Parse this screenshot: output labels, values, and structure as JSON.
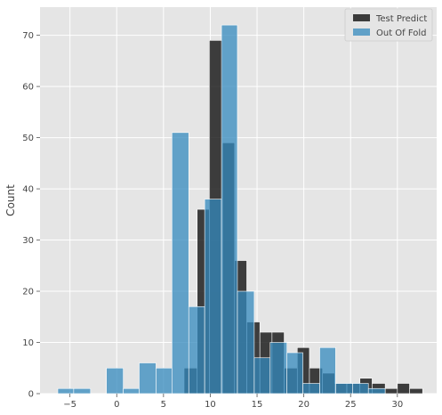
{
  "chart_data": {
    "type": "histogram",
    "title": "",
    "xlabel": "",
    "ylabel": "Count",
    "xlim": [
      -8.2,
      34.2
    ],
    "ylim": [
      0,
      75.5
    ],
    "x_ticks": [
      -5,
      0,
      5,
      10,
      15,
      20,
      25,
      30
    ],
    "x_tick_labels": [
      "−5",
      "0",
      "5",
      "10",
      "15",
      "20",
      "25",
      "30"
    ],
    "y_ticks": [
      0,
      10,
      20,
      30,
      40,
      50,
      60,
      70
    ],
    "y_tick_labels": [
      "0",
      "10",
      "20",
      "30",
      "40",
      "50",
      "60",
      "70"
    ],
    "grid": true,
    "legend_position": "top-right",
    "series": [
      {
        "name": "Test Predict",
        "color": "#111111",
        "opacity": 0.8,
        "bins": [
          {
            "x0": 7.2,
            "x1": 8.6,
            "count": 5
          },
          {
            "x0": 8.6,
            "x1": 9.9,
            "count": 36
          },
          {
            "x0": 9.9,
            "x1": 11.3,
            "count": 69
          },
          {
            "x0": 11.3,
            "x1": 12.6,
            "count": 49
          },
          {
            "x0": 12.6,
            "x1": 13.9,
            "count": 26
          },
          {
            "x0": 13.9,
            "x1": 15.3,
            "count": 14
          },
          {
            "x0": 15.3,
            "x1": 16.6,
            "count": 12
          },
          {
            "x0": 16.6,
            "x1": 17.9,
            "count": 12
          },
          {
            "x0": 17.9,
            "x1": 19.3,
            "count": 5
          },
          {
            "x0": 19.3,
            "x1": 20.6,
            "count": 9
          },
          {
            "x0": 20.6,
            "x1": 22.0,
            "count": 5
          },
          {
            "x0": 22.0,
            "x1": 23.3,
            "count": 4
          },
          {
            "x0": 23.3,
            "x1": 24.6,
            "count": 2
          },
          {
            "x0": 24.6,
            "x1": 26.0,
            "count": 2
          },
          {
            "x0": 26.0,
            "x1": 27.3,
            "count": 3
          },
          {
            "x0": 27.3,
            "x1": 28.7,
            "count": 2
          },
          {
            "x0": 28.7,
            "x1": 30.0,
            "count": 1
          },
          {
            "x0": 30.0,
            "x1": 31.3,
            "count": 2
          },
          {
            "x0": 31.3,
            "x1": 32.7,
            "count": 1
          }
        ]
      },
      {
        "name": "Out Of Fold",
        "color": "#348ABD",
        "opacity": 0.75,
        "bins": [
          {
            "x0": -6.3,
            "x1": -4.6,
            "count": 1
          },
          {
            "x0": -4.6,
            "x1": -2.8,
            "count": 1
          },
          {
            "x0": -1.1,
            "x1": 0.7,
            "count": 5
          },
          {
            "x0": 0.7,
            "x1": 2.4,
            "count": 1
          },
          {
            "x0": 2.4,
            "x1": 4.2,
            "count": 6
          },
          {
            "x0": 4.2,
            "x1": 5.9,
            "count": 5
          },
          {
            "x0": 5.9,
            "x1": 7.7,
            "count": 51
          },
          {
            "x0": 7.7,
            "x1": 9.4,
            "count": 17
          },
          {
            "x0": 9.4,
            "x1": 11.2,
            "count": 38
          },
          {
            "x0": 11.2,
            "x1": 12.9,
            "count": 72
          },
          {
            "x0": 12.9,
            "x1": 14.7,
            "count": 20
          },
          {
            "x0": 14.7,
            "x1": 16.4,
            "count": 7
          },
          {
            "x0": 16.4,
            "x1": 18.2,
            "count": 10
          },
          {
            "x0": 18.2,
            "x1": 19.9,
            "count": 8
          },
          {
            "x0": 19.9,
            "x1": 21.7,
            "count": 2
          },
          {
            "x0": 21.7,
            "x1": 23.4,
            "count": 9
          },
          {
            "x0": 23.4,
            "x1": 25.2,
            "count": 2
          },
          {
            "x0": 25.2,
            "x1": 26.9,
            "count": 2
          },
          {
            "x0": 26.9,
            "x1": 28.7,
            "count": 1
          }
        ]
      }
    ]
  },
  "colors": {
    "plot_background": "#E5E5E5",
    "grid": "#FFFFFF",
    "bar_edge": "#FFFFFF"
  }
}
